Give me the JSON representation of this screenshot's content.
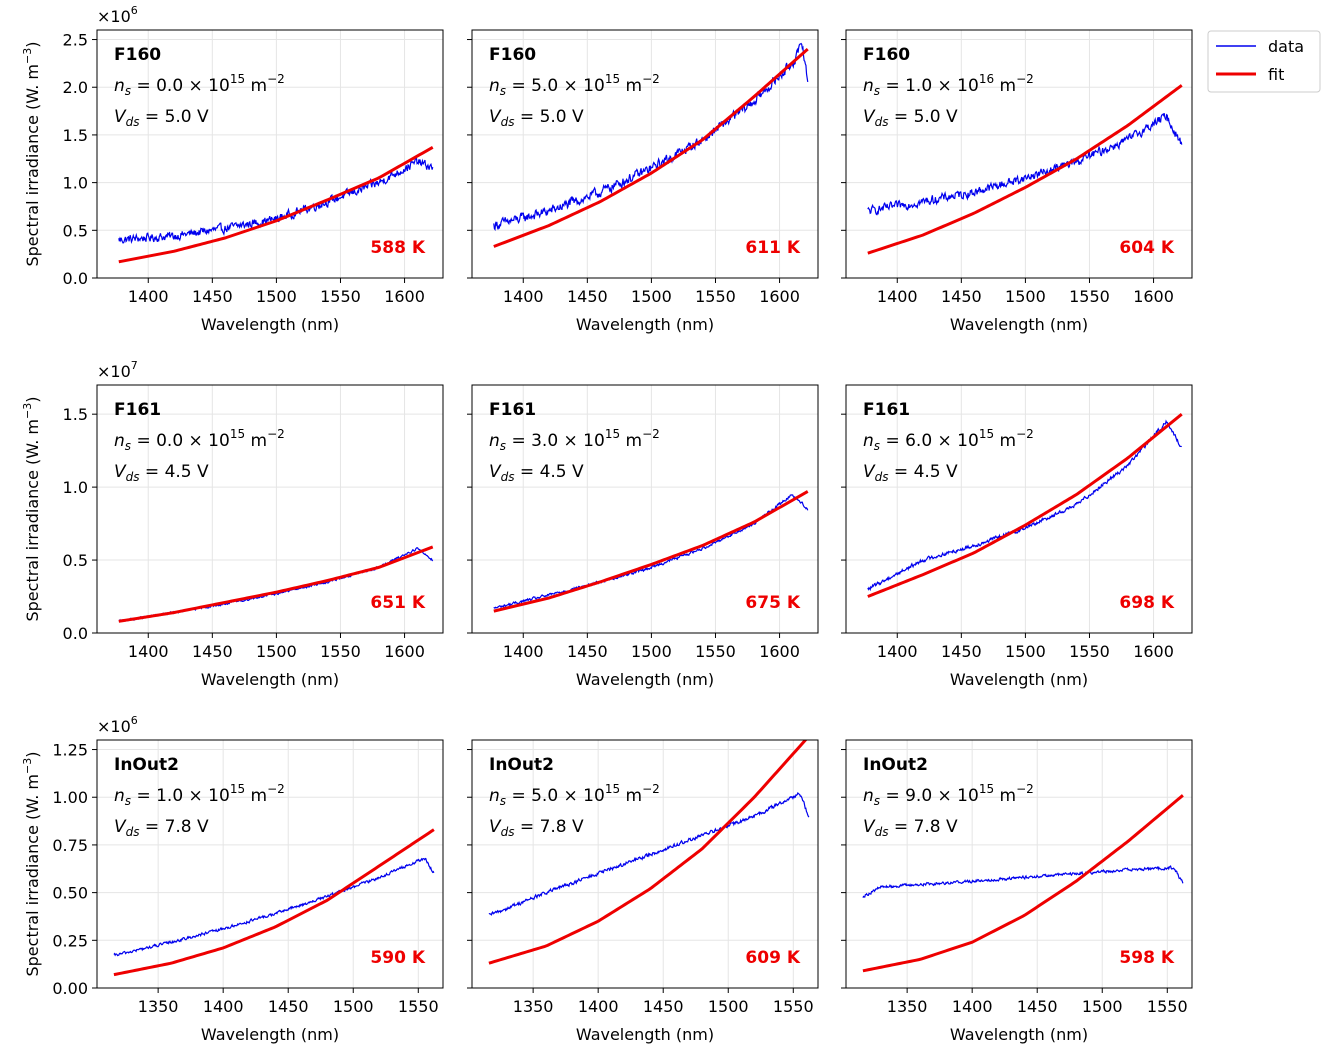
{
  "legend": {
    "data_label": "data",
    "fit_label": "fit",
    "data_color": "#0000ee",
    "fit_color": "#ee0000",
    "placement": "outside top-right"
  },
  "common": {
    "xlabel": "Wavelength (nm)",
    "ylabel": "Spectral irradiance (W. m",
    "ylabel_sup": "−3",
    "ylabel_close": ")",
    "multiplier_base": "×10"
  },
  "chart_data": [
    {
      "type": "line",
      "device": "F160",
      "ns_text": "0.0 × 10",
      "ns_exp": "15",
      "ns_unit": "m",
      "ns_unit_exp": "−2",
      "vds_text": "5.0 V",
      "temp": "588 K",
      "temp_K": 588,
      "xlim": [
        1360,
        1630
      ],
      "xticks": [
        1400,
        1450,
        1500,
        1550,
        1600
      ],
      "ylim": [
        0,
        2.6
      ],
      "yticks": [
        "0.0",
        "0.5",
        "1.0",
        "1.5",
        "2.0",
        "2.5"
      ],
      "yticks_vals": [
        0,
        0.5,
        1.0,
        1.5,
        2.0,
        2.5
      ],
      "multiplier_exp": "6",
      "x_range": [
        1377,
        1622
      ],
      "data": [
        [
          1377,
          0.4
        ],
        [
          1420,
          0.44
        ],
        [
          1460,
          0.52
        ],
        [
          1500,
          0.62
        ],
        [
          1540,
          0.8
        ],
        [
          1580,
          1.0
        ],
        [
          1610,
          1.22
        ],
        [
          1622,
          1.15
        ]
      ],
      "fit": [
        [
          1377,
          0.17
        ],
        [
          1420,
          0.28
        ],
        [
          1460,
          0.42
        ],
        [
          1500,
          0.6
        ],
        [
          1540,
          0.82
        ],
        [
          1580,
          1.05
        ],
        [
          1622,
          1.37
        ]
      ],
      "noise": 0.07
    },
    {
      "type": "line",
      "device": "F160",
      "ns_text": "5.0 × 10",
      "ns_exp": "15",
      "ns_unit": "m",
      "ns_unit_exp": "−2",
      "vds_text": "5.0 V",
      "temp": "611 K",
      "temp_K": 611,
      "xlim": [
        1360,
        1630
      ],
      "xticks": [
        1400,
        1450,
        1500,
        1550,
        1600
      ],
      "ylim": [
        0,
        2.6
      ],
      "yticks": [
        "0.0",
        "0.5",
        "1.0",
        "1.5",
        "2.0",
        "2.5"
      ],
      "yticks_vals": [
        0,
        0.5,
        1.0,
        1.5,
        2.0,
        2.5
      ],
      "multiplier_exp": "6",
      "x_range": [
        1377,
        1622
      ],
      "data": [
        [
          1377,
          0.55
        ],
        [
          1420,
          0.7
        ],
        [
          1460,
          0.9
        ],
        [
          1500,
          1.15
        ],
        [
          1540,
          1.45
        ],
        [
          1580,
          1.85
        ],
        [
          1610,
          2.25
        ],
        [
          1618,
          2.45
        ],
        [
          1622,
          2.05
        ]
      ],
      "fit": [
        [
          1377,
          0.33
        ],
        [
          1420,
          0.55
        ],
        [
          1460,
          0.8
        ],
        [
          1500,
          1.1
        ],
        [
          1540,
          1.45
        ],
        [
          1580,
          1.9
        ],
        [
          1622,
          2.4
        ]
      ],
      "noise": 0.08
    },
    {
      "type": "line",
      "device": "F160",
      "ns_text": "1.0 × 10",
      "ns_exp": "16",
      "ns_unit": "m",
      "ns_unit_exp": "−2",
      "vds_text": "5.0 V",
      "temp": "604 K",
      "temp_K": 604,
      "xlim": [
        1360,
        1630
      ],
      "xticks": [
        1400,
        1450,
        1500,
        1550,
        1600
      ],
      "ylim": [
        0,
        2.6
      ],
      "yticks": [
        "0.0",
        "0.5",
        "1.0",
        "1.5",
        "2.0",
        "2.5"
      ],
      "yticks_vals": [
        0,
        0.5,
        1.0,
        1.5,
        2.0,
        2.5
      ],
      "multiplier_exp": "6",
      "x_range": [
        1377,
        1622
      ],
      "data": [
        [
          1377,
          0.7
        ],
        [
          1420,
          0.8
        ],
        [
          1460,
          0.9
        ],
        [
          1500,
          1.05
        ],
        [
          1540,
          1.22
        ],
        [
          1580,
          1.45
        ],
        [
          1610,
          1.7
        ],
        [
          1622,
          1.4
        ]
      ],
      "fit": [
        [
          1377,
          0.26
        ],
        [
          1420,
          0.45
        ],
        [
          1460,
          0.68
        ],
        [
          1500,
          0.95
        ],
        [
          1540,
          1.25
        ],
        [
          1580,
          1.6
        ],
        [
          1622,
          2.02
        ]
      ],
      "noise": 0.07
    },
    {
      "type": "line",
      "device": "F161",
      "ns_text": "0.0 × 10",
      "ns_exp": "15",
      "ns_unit": "m",
      "ns_unit_exp": "−2",
      "vds_text": "4.5 V",
      "temp": "651 K",
      "temp_K": 651,
      "xlim": [
        1360,
        1630
      ],
      "xticks": [
        1400,
        1450,
        1500,
        1550,
        1600
      ],
      "ylim": [
        0,
        1.7
      ],
      "yticks": [
        "0.0",
        "0.5",
        "1.0",
        "1.5"
      ],
      "yticks_vals": [
        0,
        0.5,
        1.0,
        1.5
      ],
      "multiplier_exp": "7",
      "x_range": [
        1377,
        1622
      ],
      "data": [
        [
          1377,
          0.08
        ],
        [
          1420,
          0.14
        ],
        [
          1460,
          0.2
        ],
        [
          1500,
          0.27
        ],
        [
          1540,
          0.35
        ],
        [
          1580,
          0.45
        ],
        [
          1610,
          0.58
        ],
        [
          1622,
          0.5
        ]
      ],
      "fit": [
        [
          1377,
          0.08
        ],
        [
          1420,
          0.14
        ],
        [
          1460,
          0.21
        ],
        [
          1500,
          0.28
        ],
        [
          1540,
          0.36
        ],
        [
          1580,
          0.45
        ],
        [
          1622,
          0.59
        ]
      ],
      "noise": 0.012
    },
    {
      "type": "line",
      "device": "F161",
      "ns_text": "3.0 × 10",
      "ns_exp": "15",
      "ns_unit": "m",
      "ns_unit_exp": "−2",
      "vds_text": "4.5 V",
      "temp": "675 K",
      "temp_K": 675,
      "xlim": [
        1360,
        1630
      ],
      "xticks": [
        1400,
        1450,
        1500,
        1550,
        1600
      ],
      "ylim": [
        0,
        1.7
      ],
      "yticks": [
        "0.0",
        "0.5",
        "1.0",
        "1.5"
      ],
      "yticks_vals": [
        0,
        0.5,
        1.0,
        1.5
      ],
      "multiplier_exp": "7",
      "x_range": [
        1377,
        1622
      ],
      "data": [
        [
          1377,
          0.17
        ],
        [
          1420,
          0.26
        ],
        [
          1460,
          0.35
        ],
        [
          1500,
          0.45
        ],
        [
          1540,
          0.58
        ],
        [
          1580,
          0.75
        ],
        [
          1610,
          0.95
        ],
        [
          1622,
          0.85
        ]
      ],
      "fit": [
        [
          1377,
          0.15
        ],
        [
          1420,
          0.24
        ],
        [
          1460,
          0.35
        ],
        [
          1500,
          0.47
        ],
        [
          1540,
          0.6
        ],
        [
          1580,
          0.76
        ],
        [
          1622,
          0.97
        ]
      ],
      "noise": 0.015
    },
    {
      "type": "line",
      "device": "F161",
      "ns_text": "6.0 × 10",
      "ns_exp": "15",
      "ns_unit": "m",
      "ns_unit_exp": "−2",
      "vds_text": "4.5 V",
      "temp": "698 K",
      "temp_K": 698,
      "xlim": [
        1360,
        1630
      ],
      "xticks": [
        1400,
        1450,
        1500,
        1550,
        1600
      ],
      "ylim": [
        0,
        1.7
      ],
      "yticks": [
        "0.0",
        "0.5",
        "1.0",
        "1.5"
      ],
      "yticks_vals": [
        0,
        0.5,
        1.0,
        1.5
      ],
      "multiplier_exp": "7",
      "x_range": [
        1377,
        1622
      ],
      "data": [
        [
          1377,
          0.3
        ],
        [
          1420,
          0.5
        ],
        [
          1460,
          0.6
        ],
        [
          1500,
          0.72
        ],
        [
          1540,
          0.88
        ],
        [
          1580,
          1.15
        ],
        [
          1610,
          1.45
        ],
        [
          1622,
          1.27
        ]
      ],
      "fit": [
        [
          1377,
          0.25
        ],
        [
          1420,
          0.4
        ],
        [
          1460,
          0.55
        ],
        [
          1500,
          0.74
        ],
        [
          1540,
          0.95
        ],
        [
          1580,
          1.2
        ],
        [
          1622,
          1.5
        ]
      ],
      "noise": 0.02
    },
    {
      "type": "line",
      "device": "InOut2",
      "ns_text": "1.0 × 10",
      "ns_exp": "15",
      "ns_unit": "m",
      "ns_unit_exp": "−2",
      "vds_text": "7.8 V",
      "temp": "590 K",
      "temp_K": 590,
      "xlim": [
        1303,
        1569
      ],
      "xticks": [
        1350,
        1400,
        1450,
        1500,
        1550
      ],
      "ylim": [
        0,
        1.3
      ],
      "yticks": [
        "0.00",
        "0.25",
        "0.50",
        "0.75",
        "1.00",
        "1.25"
      ],
      "yticks_vals": [
        0,
        0.25,
        0.5,
        0.75,
        1.0,
        1.25
      ],
      "multiplier_exp": "6",
      "x_range": [
        1316,
        1562
      ],
      "data": [
        [
          1316,
          0.17
        ],
        [
          1360,
          0.24
        ],
        [
          1400,
          0.31
        ],
        [
          1440,
          0.39
        ],
        [
          1480,
          0.48
        ],
        [
          1520,
          0.58
        ],
        [
          1555,
          0.68
        ],
        [
          1562,
          0.6
        ]
      ],
      "fit": [
        [
          1316,
          0.07
        ],
        [
          1360,
          0.13
        ],
        [
          1400,
          0.21
        ],
        [
          1440,
          0.32
        ],
        [
          1480,
          0.46
        ],
        [
          1520,
          0.64
        ],
        [
          1562,
          0.83
        ]
      ],
      "noise": 0.012
    },
    {
      "type": "line",
      "device": "InOut2",
      "ns_text": "5.0 × 10",
      "ns_exp": "15",
      "ns_unit": "m",
      "ns_unit_exp": "−2",
      "vds_text": "7.8 V",
      "temp": "609 K",
      "temp_K": 609,
      "xlim": [
        1303,
        1569
      ],
      "xticks": [
        1350,
        1400,
        1450,
        1500,
        1550
      ],
      "ylim": [
        0,
        1.3
      ],
      "yticks": [
        "0.00",
        "0.25",
        "0.50",
        "0.75",
        "1.00",
        "1.25"
      ],
      "yticks_vals": [
        0,
        0.25,
        0.5,
        0.75,
        1.0,
        1.25
      ],
      "multiplier_exp": "6",
      "x_range": [
        1316,
        1562
      ],
      "data": [
        [
          1316,
          0.38
        ],
        [
          1360,
          0.5
        ],
        [
          1400,
          0.6
        ],
        [
          1440,
          0.7
        ],
        [
          1480,
          0.8
        ],
        [
          1520,
          0.9
        ],
        [
          1555,
          1.02
        ],
        [
          1562,
          0.9
        ]
      ],
      "fit": [
        [
          1316,
          0.13
        ],
        [
          1360,
          0.22
        ],
        [
          1400,
          0.35
        ],
        [
          1440,
          0.52
        ],
        [
          1480,
          0.73
        ],
        [
          1520,
          1.0
        ],
        [
          1562,
          1.32
        ]
      ],
      "noise": 0.015
    },
    {
      "type": "line",
      "device": "InOut2",
      "ns_text": "9.0 × 10",
      "ns_exp": "15",
      "ns_unit": "m",
      "ns_unit_exp": "−2",
      "vds_text": "7.8 V",
      "temp": "598 K",
      "temp_K": 598,
      "xlim": [
        1303,
        1569
      ],
      "xticks": [
        1350,
        1400,
        1450,
        1500,
        1550
      ],
      "ylim": [
        0,
        1.3
      ],
      "yticks": [
        "0.00",
        "0.25",
        "0.50",
        "0.75",
        "1.00",
        "1.25"
      ],
      "yticks_vals": [
        0,
        0.25,
        0.5,
        0.75,
        1.0,
        1.25
      ],
      "multiplier_exp": "6",
      "x_range": [
        1316,
        1562
      ],
      "data": [
        [
          1316,
          0.48
        ],
        [
          1330,
          0.53
        ],
        [
          1400,
          0.56
        ],
        [
          1460,
          0.59
        ],
        [
          1520,
          0.62
        ],
        [
          1555,
          0.63
        ],
        [
          1562,
          0.55
        ]
      ],
      "fit": [
        [
          1316,
          0.09
        ],
        [
          1360,
          0.15
        ],
        [
          1400,
          0.24
        ],
        [
          1440,
          0.38
        ],
        [
          1480,
          0.56
        ],
        [
          1520,
          0.77
        ],
        [
          1562,
          1.01
        ]
      ],
      "noise": 0.012
    }
  ]
}
